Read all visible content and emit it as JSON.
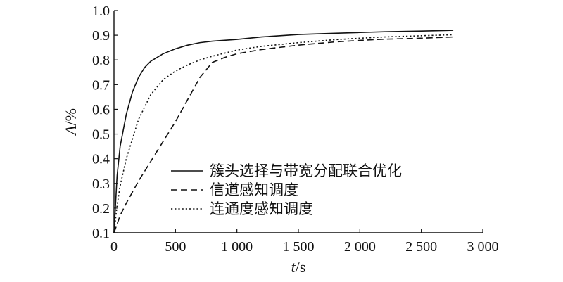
{
  "chart_data": {
    "type": "line",
    "xlabel_var": "t",
    "xlabel_unit": "/s",
    "ylabel_var": "A",
    "ylabel_unit": "/%",
    "xlim": [
      0,
      3000
    ],
    "ylim": [
      0.1,
      1.0
    ],
    "xticks": [
      0,
      500,
      1000,
      1500,
      2000,
      2500,
      3000
    ],
    "xtick_labels": [
      "0",
      "500",
      "1 000",
      "1 500",
      "2 000",
      "2 500",
      "3 000"
    ],
    "yticks": [
      0.1,
      0.2,
      0.3,
      0.4,
      0.5,
      0.6,
      0.7,
      0.8,
      0.9,
      1.0
    ],
    "ytick_labels": [
      "0.1",
      "0.2",
      "0.3",
      "0.4",
      "0.5",
      "0.6",
      "0.7",
      "0.8",
      "0.9",
      "1.0"
    ],
    "grid": false,
    "legend_position": "center-right",
    "series": [
      {
        "name": "簇头选择与带宽分配联合优化",
        "style": "solid",
        "x": [
          0,
          25,
          50,
          100,
          150,
          200,
          250,
          300,
          400,
          500,
          600,
          700,
          800,
          1000,
          1200,
          1500,
          1800,
          2000,
          2200,
          2500,
          2760
        ],
        "y": [
          0.1,
          0.33,
          0.45,
          0.58,
          0.67,
          0.73,
          0.77,
          0.795,
          0.825,
          0.845,
          0.86,
          0.87,
          0.876,
          0.883,
          0.893,
          0.903,
          0.908,
          0.911,
          0.914,
          0.917,
          0.92
        ]
      },
      {
        "name": "信道感知调度",
        "style": "dashed",
        "x": [
          0,
          50,
          100,
          200,
          300,
          400,
          500,
          600,
          700,
          800,
          900,
          1000,
          1200,
          1500,
          1800,
          2000,
          2200,
          2500,
          2760
        ],
        "y": [
          0.1,
          0.17,
          0.22,
          0.31,
          0.39,
          0.47,
          0.55,
          0.64,
          0.73,
          0.79,
          0.81,
          0.825,
          0.842,
          0.86,
          0.873,
          0.879,
          0.884,
          0.888,
          0.893
        ]
      },
      {
        "name": "连通度感知调度",
        "style": "dotted",
        "x": [
          0,
          25,
          50,
          100,
          200,
          300,
          400,
          500,
          600,
          700,
          800,
          1000,
          1200,
          1500,
          1800,
          2000,
          2200,
          2500,
          2760
        ],
        "y": [
          0.1,
          0.21,
          0.29,
          0.4,
          0.56,
          0.66,
          0.72,
          0.755,
          0.78,
          0.8,
          0.815,
          0.84,
          0.855,
          0.87,
          0.882,
          0.888,
          0.893,
          0.898,
          0.902
        ]
      }
    ]
  }
}
